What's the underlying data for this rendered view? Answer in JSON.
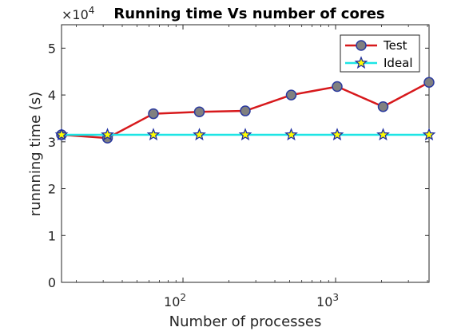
{
  "chart_data": {
    "type": "line",
    "title": "Running time Vs number of cores",
    "xlabel": "Number of processes",
    "ylabel": "runnning time (s)",
    "xscale": "log",
    "xlim": [
      16,
      4096
    ],
    "ylim": [
      0,
      5.5
    ],
    "y_multiplier_label": "×10",
    "y_multiplier_exponent": "4",
    "y_ticks": [
      0,
      1,
      2,
      3,
      4,
      5
    ],
    "y_tick_labels": [
      "0",
      "1",
      "2",
      "3",
      "4",
      "5"
    ],
    "x_ticks": [
      100,
      1000
    ],
    "x_tick_base": "10",
    "x_tick_exponents": [
      "2",
      "3"
    ],
    "grid": false,
    "legend_position": "top-right",
    "series": [
      {
        "name": "Test",
        "color": "#d7191c",
        "marker": "circle",
        "marker_fill": "#808080",
        "marker_edge": "#2b3a9e",
        "x": [
          16,
          32,
          64,
          128,
          256,
          512,
          1024,
          2048,
          4096
        ],
        "y": [
          3.15,
          3.08,
          3.6,
          3.64,
          3.66,
          4.0,
          4.18,
          3.75,
          4.27
        ]
      },
      {
        "name": "Ideal",
        "color": "#1de5e5",
        "marker": "star",
        "marker_fill": "#ffff00",
        "marker_edge": "#1f2fa0",
        "x": [
          16,
          32,
          64,
          128,
          256,
          512,
          1024,
          2048,
          4096
        ],
        "y": [
          3.15,
          3.15,
          3.15,
          3.15,
          3.15,
          3.15,
          3.15,
          3.15,
          3.15
        ]
      }
    ]
  }
}
